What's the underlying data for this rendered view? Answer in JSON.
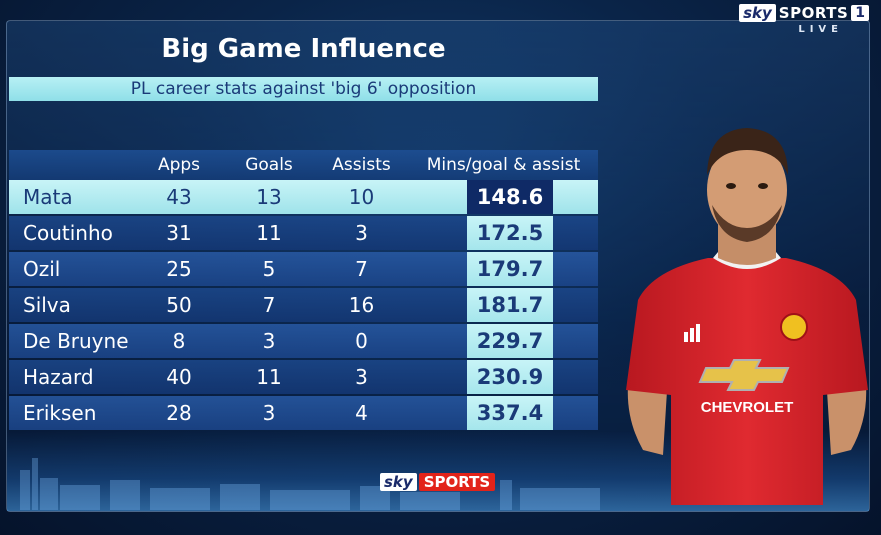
{
  "broadcast": {
    "sky": "sky",
    "sports": "SPORTS",
    "channel": "1",
    "live": "LIVE"
  },
  "graphic": {
    "title": "Big Game Influence",
    "subtitle": "PL career stats against 'big 6' opposition"
  },
  "table": {
    "columns": [
      "",
      "Apps",
      "Goals",
      "Assists",
      "Mins/goal & assist"
    ],
    "rows": [
      {
        "name": "Mata",
        "apps": "43",
        "goals": "13",
        "assists": "10",
        "mins": "148.6"
      },
      {
        "name": "Coutinho",
        "apps": "31",
        "goals": "11",
        "assists": "3",
        "mins": "172.5"
      },
      {
        "name": "Ozil",
        "apps": "25",
        "goals": "5",
        "assists": "7",
        "mins": "179.7"
      },
      {
        "name": "Silva",
        "apps": "50",
        "goals": "7",
        "assists": "16",
        "mins": "181.7"
      },
      {
        "name": "De Bruyne",
        "apps": "8",
        "goals": "3",
        "assists": "0",
        "mins": "229.7"
      },
      {
        "name": "Hazard",
        "apps": "40",
        "goals": "11",
        "assists": "3",
        "mins": "230.9"
      },
      {
        "name": "Eriksen",
        "apps": "28",
        "goals": "3",
        "assists": "4",
        "mins": "337.4"
      }
    ]
  },
  "shirt": {
    "sponsor": "CHEVROLET",
    "maker": "adidas"
  },
  "footer_logo": {
    "sky": "sky",
    "sports": "SPORTS"
  },
  "colors": {
    "highlight_row": "#b7f0f4",
    "metric_highlight": "#0f2a66",
    "shirt_red": "#d8232a"
  }
}
